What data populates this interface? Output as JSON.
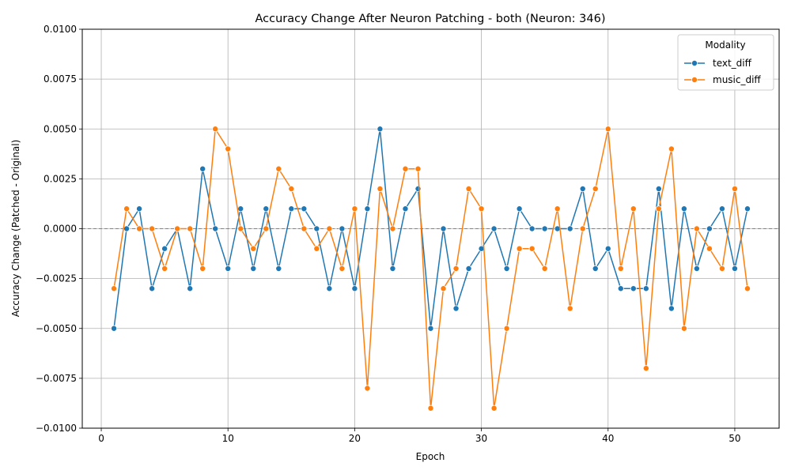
{
  "chart_data": {
    "type": "line",
    "title": "Accuracy Change After Neuron Patching - both (Neuron: 346)",
    "xlabel": "Epoch",
    "ylabel": "Accuracy Change (Patched - Original)",
    "xlim": [
      -1.5,
      53.5
    ],
    "ylim": [
      -0.01,
      0.01
    ],
    "x_ticks": [
      0,
      10,
      20,
      30,
      40,
      50
    ],
    "y_ticks": [
      -0.01,
      -0.0075,
      -0.005,
      -0.0025,
      0.0,
      0.0025,
      0.005,
      0.0075,
      0.01
    ],
    "x_tick_labels": [
      "0",
      "10",
      "20",
      "30",
      "40",
      "50"
    ],
    "y_tick_labels": [
      "−0.0100",
      "−0.0075",
      "−0.0050",
      "−0.0025",
      "0.0000",
      "0.0025",
      "0.0050",
      "0.0075",
      "0.0100"
    ],
    "grid": true,
    "reference_line": 0,
    "legend": {
      "title": "Modality",
      "placement": "top-right"
    },
    "x": [
      1,
      2,
      3,
      4,
      5,
      6,
      7,
      8,
      9,
      10,
      11,
      12,
      13,
      14,
      15,
      16,
      17,
      18,
      19,
      20,
      21,
      22,
      23,
      24,
      25,
      26,
      27,
      28,
      29,
      30,
      31,
      32,
      33,
      34,
      35,
      36,
      37,
      38,
      39,
      40,
      41,
      42,
      43,
      44,
      45,
      46,
      47,
      48,
      49,
      50,
      51
    ],
    "series": [
      {
        "name": "text_diff",
        "color": "#1f77b4",
        "values": [
          -0.005,
          0.0,
          0.001,
          -0.003,
          -0.001,
          0.0,
          -0.003,
          0.003,
          0.0,
          -0.002,
          0.001,
          -0.002,
          0.001,
          -0.002,
          0.001,
          0.001,
          0.0,
          -0.003,
          0.0,
          -0.003,
          0.001,
          0.005,
          -0.002,
          0.001,
          0.002,
          -0.005,
          0.0,
          -0.004,
          -0.002,
          -0.001,
          0.0,
          -0.002,
          0.001,
          0.0,
          0.0,
          0.0,
          0.0,
          0.002,
          -0.002,
          -0.001,
          -0.003,
          -0.003,
          -0.003,
          0.002,
          -0.004,
          0.001,
          -0.002,
          0.0,
          0.001,
          -0.002,
          0.001
        ]
      },
      {
        "name": "music_diff",
        "color": "#ff7f0e",
        "values": [
          -0.003,
          0.001,
          0.0,
          0.0,
          -0.002,
          0.0,
          0.0,
          -0.002,
          0.005,
          0.004,
          0.0,
          -0.001,
          0.0,
          0.003,
          0.002,
          0.0,
          -0.001,
          0.0,
          -0.002,
          0.001,
          -0.008,
          0.002,
          0.0,
          0.003,
          0.003,
          -0.009,
          -0.003,
          -0.002,
          0.002,
          0.001,
          -0.009,
          -0.005,
          -0.001,
          -0.001,
          -0.002,
          0.001,
          -0.004,
          0.0,
          0.002,
          0.005,
          -0.002,
          0.001,
          -0.007,
          0.001,
          0.004,
          -0.005,
          0.0,
          -0.001,
          -0.002,
          0.002,
          -0.003
        ]
      }
    ]
  }
}
